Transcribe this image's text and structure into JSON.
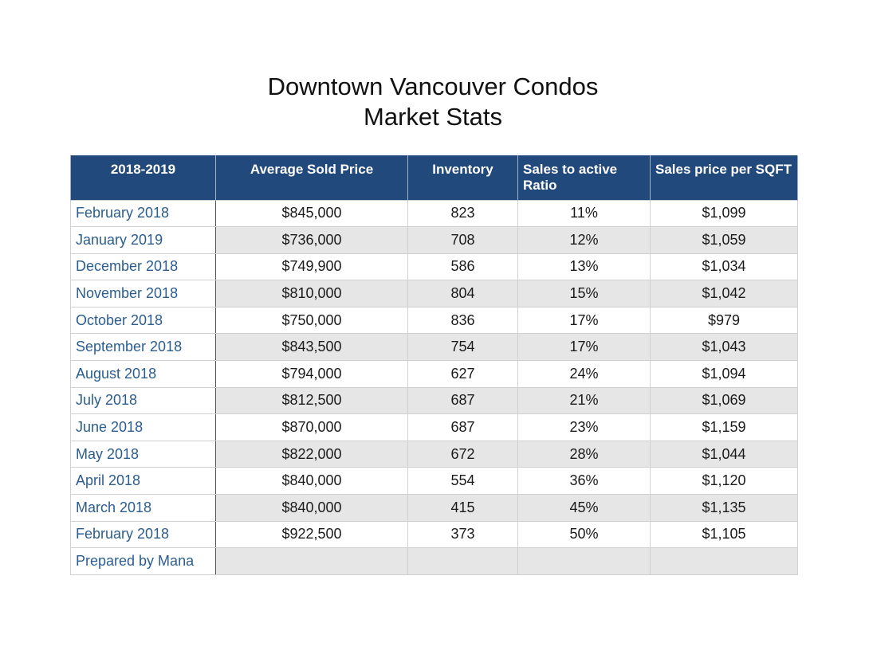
{
  "title_line1": "Downtown Vancouver Condos",
  "title_line2": "Market Stats",
  "chart_data": {
    "type": "table",
    "title": "Downtown Vancouver Condos Market Stats",
    "columns": [
      "2018-2019",
      "Average Sold Price",
      "Inventory",
      "Sales to active Ratio",
      "Sales price per SQFT"
    ],
    "rows": [
      [
        "February 2018",
        "$845,000",
        "823",
        "11%",
        "$1,099"
      ],
      [
        "January 2019",
        "$736,000",
        "708",
        "12%",
        "$1,059"
      ],
      [
        "December 2018",
        "$749,900",
        "586",
        "13%",
        "$1,034"
      ],
      [
        "November 2018",
        "$810,000",
        "804",
        "15%",
        "$1,042"
      ],
      [
        "October 2018",
        "$750,000",
        "836",
        "17%",
        "$979"
      ],
      [
        "September 2018",
        "$843,500",
        "754",
        "17%",
        "$1,043"
      ],
      [
        "August 2018",
        "$794,000",
        "627",
        "24%",
        "$1,094"
      ],
      [
        "July 2018",
        "$812,500",
        "687",
        "21%",
        "$1,069"
      ],
      [
        "June 2018",
        "$870,000",
        "687",
        "23%",
        "$1,159"
      ],
      [
        "May 2018",
        "$822,000",
        "672",
        "28%",
        "$1,044"
      ],
      [
        "April 2018",
        "$840,000",
        "554",
        "36%",
        "$1,120"
      ],
      [
        "March 2018",
        "$840,000",
        "415",
        "45%",
        "$1,135"
      ],
      [
        "February 2018",
        "$922,500",
        "373",
        "50%",
        "$1,105"
      ]
    ],
    "footer": "Prepared by Mana"
  },
  "colors": {
    "header_bg": "#22497c",
    "header_text": "#ffffff",
    "label_text": "#2b5d8f",
    "stripe_bg": "#e6e6e6"
  }
}
